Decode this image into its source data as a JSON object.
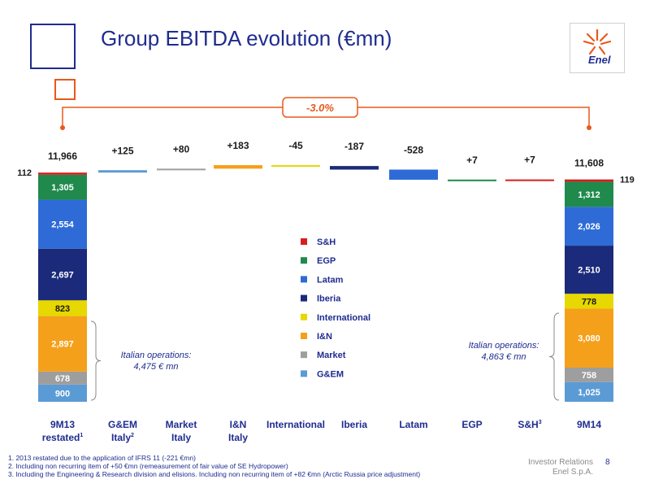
{
  "header": {
    "title": "Group EBITDA evolution (€mn)",
    "logo_text": "Enel"
  },
  "chart_data": {
    "type": "waterfall",
    "title": "Group EBITDA evolution (€mn)",
    "units": "€mn",
    "segments": [
      "G&EM",
      "Market",
      "I&N",
      "International",
      "Iberia",
      "Latam",
      "EGP",
      "S&H"
    ],
    "colors": {
      "G&EM": "#5b9bd5",
      "Market": "#9e9e9e",
      "I&N": "#f5a01a",
      "International": "#e6d800",
      "Iberia": "#1b2a7a",
      "Latam": "#2e6bd6",
      "EGP": "#1f8a4c",
      "S&H": "#d81e1e"
    },
    "start": {
      "total_label": "11,966",
      "total": 11966,
      "values": {
        "G&EM": 900,
        "Market": 678,
        "I&N": 2897,
        "International": 823,
        "Iberia": 2697,
        "Latam": 2554,
        "EGP": 1305,
        "S&H": 112
      },
      "value_labels": {
        "G&EM": "900",
        "Market": "678",
        "I&N": "2,897",
        "International": "823",
        "Iberia": "2,697",
        "Latam": "2,554",
        "EGP": "1,305",
        "S&H": "112"
      }
    },
    "end": {
      "total_label": "11,608",
      "total": 11608,
      "values": {
        "G&EM": 1025,
        "Market": 758,
        "I&N": 3080,
        "International": 778,
        "Iberia": 2510,
        "Latam": 2026,
        "EGP": 1312,
        "S&H": 119
      },
      "value_labels": {
        "G&EM": "1,025",
        "Market": "758",
        "I&N": "3,080",
        "International": "778",
        "Iberia": "2,510",
        "Latam": "2,026",
        "EGP": "1,312",
        "S&H": "119"
      }
    },
    "changes": [
      {
        "segment": "G&EM",
        "value": 125,
        "label": "+125"
      },
      {
        "segment": "Market",
        "value": 80,
        "label": "+80"
      },
      {
        "segment": "I&N",
        "value": 183,
        "label": "+183"
      },
      {
        "segment": "International",
        "value": -45,
        "label": "-45"
      },
      {
        "segment": "Iberia",
        "value": -187,
        "label": "-187"
      },
      {
        "segment": "Latam",
        "value": -528,
        "label": "-528"
      },
      {
        "segment": "EGP",
        "value": 7,
        "label": "+7"
      },
      {
        "segment": "S&H",
        "value": 7,
        "label": "+7"
      }
    ],
    "categories": [
      {
        "label": "9M13",
        "label2": "restated",
        "sup": "1"
      },
      {
        "label": "G&EM",
        "label2": "Italy",
        "sup": "2"
      },
      {
        "label": "Market",
        "label2": "Italy",
        "sup": ""
      },
      {
        "label": "I&N",
        "label2": "Italy",
        "sup": ""
      },
      {
        "label": "International",
        "label2": "",
        "sup": ""
      },
      {
        "label": "Iberia",
        "label2": "",
        "sup": ""
      },
      {
        "label": "Latam",
        "label2": "",
        "sup": ""
      },
      {
        "label": "EGP",
        "label2": "",
        "sup": ""
      },
      {
        "label": "S&H",
        "label2": "",
        "sup": "3"
      },
      {
        "label": "9M14",
        "label2": "",
        "sup": ""
      }
    ],
    "legend": [
      "S&H",
      "EGP",
      "Latam",
      "Iberia",
      "International",
      "I&N",
      "Market",
      "G&EM"
    ],
    "variation_label": "-3.0%",
    "italian_ops_start": {
      "line1": "Italian operations:",
      "line2": "4,475 € mn"
    },
    "italian_ops_end": {
      "line1": "Italian operations:",
      "line2": "4,863 € mn"
    }
  },
  "footnotes": [
    "1. 2013 restated due to the application of IFRS 11 (-221 €mn)",
    "2. Including non recurring item of +50 €mn (remeasurement of fair value of SE Hydropower)",
    "3. Including the Engineering & Research division and elisions. Including non recurring item of +82 €mn (Arctic Russia price adjustment)"
  ],
  "footer": {
    "line1": "Investor Relations",
    "line2": "Enel S.p.A.",
    "page": "8"
  }
}
